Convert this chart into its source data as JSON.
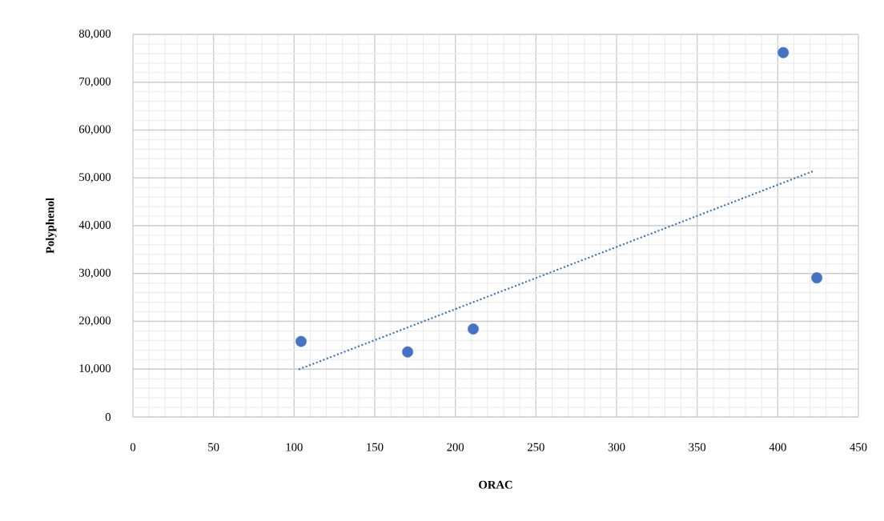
{
  "chart_data": {
    "type": "scatter",
    "xlabel": "ORAC",
    "ylabel": "Polyphenol",
    "xlim": [
      0,
      450
    ],
    "ylim": [
      0,
      80000
    ],
    "xticks": [
      0,
      50,
      100,
      150,
      200,
      250,
      300,
      350,
      400,
      450
    ],
    "yticks": [
      {
        "value": 0,
        "label": "0"
      },
      {
        "value": 10000,
        "label": "10,000"
      },
      {
        "value": 20000,
        "label": "20,000"
      },
      {
        "value": 30000,
        "label": "30,000"
      },
      {
        "value": 40000,
        "label": "40,000"
      },
      {
        "value": 50000,
        "label": "50,000"
      },
      {
        "value": 60000,
        "label": "60,000"
      },
      {
        "value": 70000,
        "label": "70,000"
      },
      {
        "value": 80000,
        "label": "80,000"
      }
    ],
    "grid": true,
    "series": [
      {
        "color": "#4472c4",
        "marker": "circle",
        "x": [
          104.3,
          170.4,
          211.1,
          403.4,
          424.2
        ],
        "values": [
          15800,
          13600,
          18400,
          76200,
          29100
        ]
      },
      {
        "type": "line",
        "color": "#4472c4",
        "line_style": "dotted",
        "marker": "none",
        "x": [
          103.3,
          422.7
        ],
        "values": [
          10000,
          51500
        ]
      }
    ]
  }
}
